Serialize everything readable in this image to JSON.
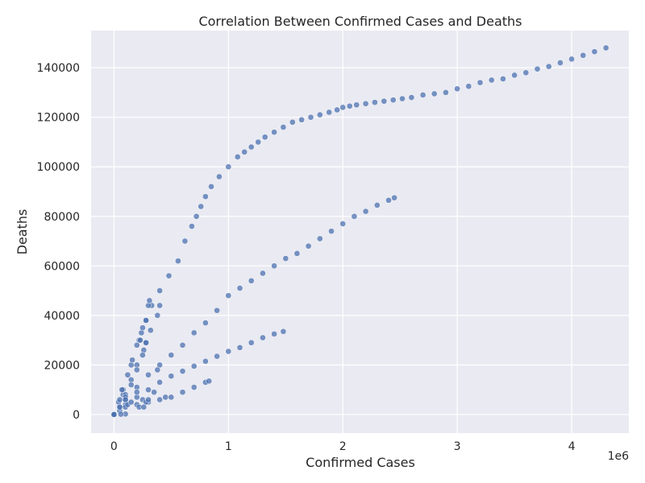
{
  "chart_data": {
    "type": "scatter",
    "title": "Correlation Between Confirmed Cases and Deaths",
    "xlabel": "Confirmed Cases",
    "ylabel": "Deaths",
    "x_offset_label": "1e6",
    "xlim": [
      -200000,
      4500000
    ],
    "ylim": [
      -7500,
      155000
    ],
    "x_ticks": [
      0,
      1000000,
      2000000,
      3000000,
      4000000
    ],
    "x_tick_labels": [
      "0",
      "1",
      "2",
      "3",
      "4"
    ],
    "y_ticks": [
      0,
      20000,
      40000,
      60000,
      80000,
      100000,
      120000,
      140000
    ],
    "y_tick_labels": [
      "0",
      "20000",
      "40000",
      "60000",
      "80000",
      "100000",
      "120000",
      "140000"
    ],
    "grid": true,
    "background": "#eaeaf2",
    "point_color": "#4c72b0",
    "series": [
      {
        "values": [
          [
            0,
            0
          ],
          [
            80000,
            8000
          ],
          [
            150000,
            20000
          ],
          [
            220000,
            30000
          ],
          [
            280000,
            38000
          ],
          [
            330000,
            44000
          ],
          [
            400000,
            50000
          ],
          [
            480000,
            56000
          ],
          [
            560000,
            62000
          ],
          [
            620000,
            70000
          ],
          [
            680000,
            76000
          ],
          [
            720000,
            80000
          ],
          [
            760000,
            84000
          ],
          [
            800000,
            88000
          ],
          [
            850000,
            92000
          ],
          [
            920000,
            96000
          ],
          [
            1000000,
            100000
          ],
          [
            1080000,
            104000
          ],
          [
            1140000,
            106000
          ],
          [
            1200000,
            108000
          ],
          [
            1260000,
            110000
          ],
          [
            1320000,
            112000
          ],
          [
            1400000,
            114000
          ],
          [
            1480000,
            116000
          ],
          [
            1560000,
            118000
          ],
          [
            1640000,
            119000
          ],
          [
            1720000,
            120000
          ],
          [
            1800000,
            121000
          ],
          [
            1880000,
            122000
          ],
          [
            1950000,
            123000
          ],
          [
            2000000,
            124000
          ],
          [
            2060000,
            124500
          ],
          [
            2120000,
            125000
          ],
          [
            2200000,
            125500
          ],
          [
            2280000,
            126000
          ],
          [
            2360000,
            126500
          ],
          [
            2440000,
            127000
          ],
          [
            2520000,
            127500
          ],
          [
            2600000,
            128000
          ],
          [
            2700000,
            129000
          ],
          [
            2800000,
            129500
          ],
          [
            2900000,
            130000
          ],
          [
            3000000,
            131500
          ],
          [
            3100000,
            132500
          ],
          [
            3200000,
            134000
          ],
          [
            3300000,
            135000
          ],
          [
            3400000,
            135500
          ],
          [
            3500000,
            137000
          ],
          [
            3600000,
            138000
          ],
          [
            3700000,
            139500
          ],
          [
            3800000,
            140500
          ],
          [
            3900000,
            142000
          ],
          [
            4000000,
            143500
          ],
          [
            4100000,
            145000
          ],
          [
            4200000,
            146500
          ],
          [
            4300000,
            148000
          ]
        ]
      },
      {
        "values": [
          [
            0,
            0
          ],
          [
            100000,
            6000
          ],
          [
            200000,
            11000
          ],
          [
            300000,
            16000
          ],
          [
            400000,
            20000
          ],
          [
            500000,
            24000
          ],
          [
            600000,
            28000
          ],
          [
            700000,
            33000
          ],
          [
            800000,
            37000
          ],
          [
            900000,
            42000
          ],
          [
            1000000,
            48000
          ],
          [
            1100000,
            51000
          ],
          [
            1200000,
            54000
          ],
          [
            1300000,
            57000
          ],
          [
            1400000,
            60000
          ],
          [
            1500000,
            63000
          ],
          [
            1600000,
            65000
          ],
          [
            1700000,
            68000
          ],
          [
            1800000,
            71000
          ],
          [
            1900000,
            74000
          ],
          [
            2000000,
            77000
          ],
          [
            2100000,
            80000
          ],
          [
            2200000,
            82000
          ],
          [
            2300000,
            84500
          ],
          [
            2400000,
            86500
          ],
          [
            2450000,
            87500
          ]
        ]
      },
      {
        "values": [
          [
            0,
            0
          ],
          [
            100000,
            4000
          ],
          [
            200000,
            7000
          ],
          [
            300000,
            10000
          ],
          [
            400000,
            13000
          ],
          [
            500000,
            15500
          ],
          [
            600000,
            17500
          ],
          [
            700000,
            19500
          ],
          [
            800000,
            21500
          ],
          [
            900000,
            23500
          ],
          [
            1000000,
            25500
          ],
          [
            1100000,
            27000
          ],
          [
            1200000,
            29000
          ],
          [
            1300000,
            31000
          ],
          [
            1400000,
            32500
          ],
          [
            1480000,
            33500
          ]
        ]
      },
      {
        "values": [
          [
            0,
            0
          ],
          [
            50000,
            1500
          ],
          [
            100000,
            3000
          ],
          [
            200000,
            4000
          ],
          [
            300000,
            5000
          ],
          [
            400000,
            6000
          ],
          [
            500000,
            7000
          ],
          [
            600000,
            9000
          ],
          [
            700000,
            11000
          ],
          [
            800000,
            13000
          ],
          [
            830000,
            13500
          ]
        ]
      },
      {
        "values": [
          [
            0,
            0
          ],
          [
            40000,
            5000
          ],
          [
            80000,
            10000
          ],
          [
            120000,
            16000
          ],
          [
            160000,
            22000
          ],
          [
            200000,
            28000
          ],
          [
            240000,
            33000
          ],
          [
            280000,
            38000
          ],
          [
            300000,
            44000
          ],
          [
            310000,
            46000
          ]
        ]
      },
      {
        "values": [
          [
            0,
            0
          ],
          [
            50000,
            3000
          ],
          [
            100000,
            8000
          ],
          [
            150000,
            14000
          ],
          [
            200000,
            20000
          ],
          [
            260000,
            26000
          ],
          [
            320000,
            34000
          ],
          [
            380000,
            40000
          ],
          [
            400000,
            44000
          ]
        ]
      },
      {
        "values": [
          [
            0,
            0
          ],
          [
            50000,
            3000
          ],
          [
            100000,
            7000
          ],
          [
            150000,
            12000
          ],
          [
            200000,
            18000
          ],
          [
            250000,
            24000
          ],
          [
            280000,
            29000
          ]
        ]
      },
      {
        "values": [
          [
            50000,
            6000
          ],
          [
            70000,
            10000
          ],
          [
            100000,
            6000
          ],
          [
            120000,
            4000
          ],
          [
            150000,
            5000
          ],
          [
            200000,
            9000
          ],
          [
            220000,
            3000
          ],
          [
            250000,
            6000
          ],
          [
            260000,
            3000
          ],
          [
            280000,
            5000
          ],
          [
            300000,
            6000
          ],
          [
            350000,
            9000
          ],
          [
            380000,
            18000
          ],
          [
            450000,
            7000
          ],
          [
            250000,
            35000
          ],
          [
            230000,
            30000
          ],
          [
            280000,
            29000
          ],
          [
            100000,
            200
          ],
          [
            60000,
            100
          ]
        ]
      }
    ]
  }
}
